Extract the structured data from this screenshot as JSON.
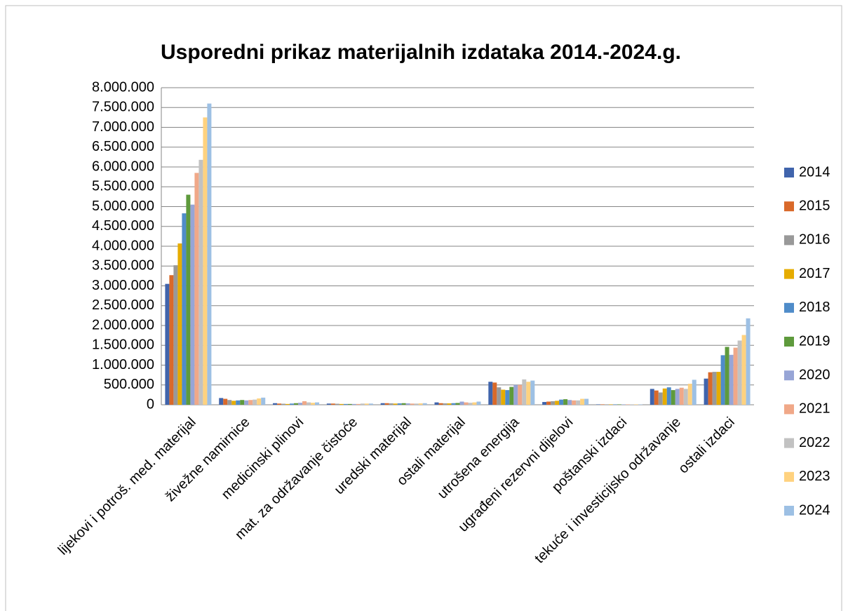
{
  "chart_data": {
    "type": "bar",
    "title": "Usporedni prikaz materijalnih izdataka 2014.-2024.g.",
    "categories": [
      "lijekovi i potroš. med. materijal",
      "živežne namirnice",
      "medicinski plinovi",
      "mat. za održavanje čistoće",
      "uredski materijal",
      "ostali materijal",
      "utrošena energija",
      "ugrađeni rezervni dijelovi",
      "poštanski izdaci",
      "tekuće i investicijsko održavanje",
      "ostali izdaci"
    ],
    "series": [
      {
        "name": "2014",
        "color": "#4064ac",
        "values": [
          3050000,
          170000,
          40000,
          30000,
          40000,
          60000,
          580000,
          70000,
          10000,
          400000,
          660000
        ]
      },
      {
        "name": "2015",
        "color": "#d9692a",
        "values": [
          3270000,
          150000,
          30000,
          30000,
          40000,
          40000,
          560000,
          80000,
          10000,
          360000,
          820000
        ]
      },
      {
        "name": "2016",
        "color": "#999999",
        "values": [
          3520000,
          120000,
          25000,
          25000,
          35000,
          35000,
          440000,
          90000,
          10000,
          310000,
          830000
        ]
      },
      {
        "name": "2017",
        "color": "#e6ac00",
        "values": [
          4070000,
          100000,
          20000,
          20000,
          30000,
          35000,
          380000,
          100000,
          10000,
          410000,
          830000
        ]
      },
      {
        "name": "2018",
        "color": "#4f8cc9",
        "values": [
          4830000,
          110000,
          30000,
          20000,
          35000,
          40000,
          370000,
          130000,
          10000,
          440000,
          1250000
        ]
      },
      {
        "name": "2019",
        "color": "#5e9a3c",
        "values": [
          5300000,
          120000,
          40000,
          20000,
          40000,
          45000,
          450000,
          140000,
          10000,
          370000,
          1460000
        ]
      },
      {
        "name": "2020",
        "color": "#97a5d6",
        "values": [
          5050000,
          110000,
          50000,
          20000,
          35000,
          80000,
          500000,
          120000,
          10000,
          400000,
          1260000
        ]
      },
      {
        "name": "2021",
        "color": "#f0a888",
        "values": [
          5850000,
          120000,
          90000,
          20000,
          30000,
          60000,
          500000,
          110000,
          10000,
          430000,
          1440000
        ]
      },
      {
        "name": "2022",
        "color": "#c2c2c2",
        "values": [
          6180000,
          130000,
          60000,
          30000,
          30000,
          50000,
          640000,
          110000,
          10000,
          400000,
          1620000
        ]
      },
      {
        "name": "2023",
        "color": "#ffd27f",
        "values": [
          7250000,
          160000,
          50000,
          30000,
          35000,
          60000,
          580000,
          150000,
          10000,
          530000,
          1760000
        ]
      },
      {
        "name": "2024",
        "color": "#9dc0e4",
        "values": [
          7600000,
          180000,
          60000,
          30000,
          40000,
          80000,
          610000,
          150000,
          10000,
          630000,
          2180000
        ]
      }
    ],
    "ylim": [
      0,
      8000000
    ],
    "yticks": [
      0,
      {
        "value": 500000,
        "label": "500.000"
      },
      {
        "value": 1000000,
        "label": "1.000.000"
      },
      {
        "value": 1500000,
        "label": "1.500.000"
      },
      {
        "value": 2000000,
        "label": "2.000.000"
      },
      {
        "value": 2500000,
        "label": "2.500.000"
      },
      {
        "value": 3000000,
        "label": "3.000.000"
      },
      {
        "value": 3500000,
        "label": "3.500.000"
      },
      {
        "value": 4000000,
        "label": "4.000.000"
      },
      {
        "value": 4500000,
        "label": "4.500.000"
      },
      {
        "value": 5000000,
        "label": "5.000.000"
      },
      {
        "value": 5500000,
        "label": "5.500.000"
      },
      {
        "value": 6000000,
        "label": "6.000.000"
      },
      {
        "value": 6500000,
        "label": "6.500.000"
      },
      {
        "value": 7000000,
        "label": "7.000.000"
      },
      {
        "value": 7500000,
        "label": "7.500.000"
      },
      {
        "value": 8000000,
        "label": "8.000.000"
      }
    ],
    "grid": true,
    "legend": "right"
  }
}
